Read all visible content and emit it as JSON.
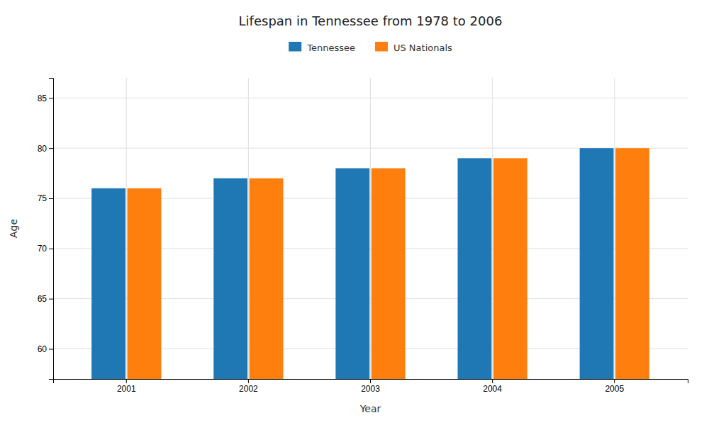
{
  "chart_data": {
    "type": "bar",
    "title": "Lifespan in Tennessee from 1978 to 2006",
    "xlabel": "Year",
    "ylabel": "Age",
    "categories": [
      "2001",
      "2002",
      "2003",
      "2004",
      "2005"
    ],
    "series": [
      {
        "name": "Tennessee",
        "values": [
          76,
          77,
          78,
          79,
          80
        ]
      },
      {
        "name": "US Nationals",
        "values": [
          76,
          77,
          78,
          79,
          80
        ]
      }
    ],
    "ylim": [
      57,
      87
    ],
    "yticks": [
      60,
      65,
      70,
      75,
      80,
      85
    ],
    "grid": true,
    "legend": "top"
  }
}
